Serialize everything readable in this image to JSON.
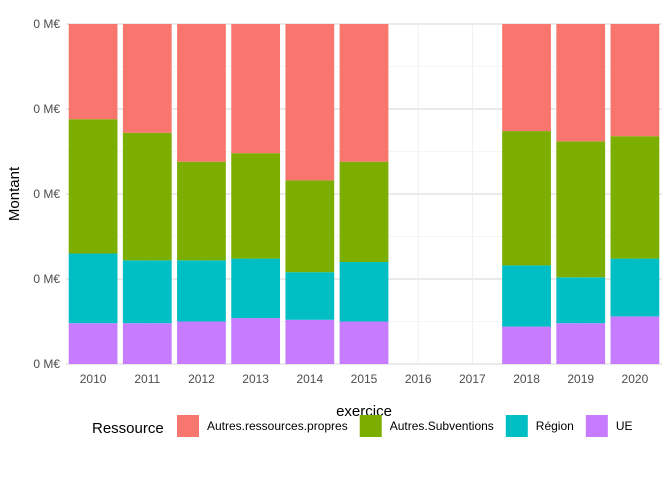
{
  "chart_data": {
    "type": "bar",
    "stacked": true,
    "normalized": true,
    "grid": true,
    "xlabel": "exercice",
    "ylabel": "Montant",
    "ylim": [
      0,
      1
    ],
    "y_tick_labels": [
      "0 M€",
      "0 M€",
      "0 M€",
      "0 M€",
      "0 M€"
    ],
    "categories": [
      "2010",
      "2011",
      "2012",
      "2013",
      "2014",
      "2015",
      "2016",
      "2017",
      "2018",
      "2019",
      "2020"
    ],
    "legend_title": "Ressource",
    "legend_position": "bottom",
    "series": [
      {
        "name": "UE",
        "color": "#C77CFF",
        "values": [
          0.12,
          0.12,
          0.125,
          0.135,
          0.13,
          0.125,
          0,
          0,
          0.11,
          0.12,
          0.14
        ]
      },
      {
        "name": "Région",
        "color": "#00BFC4",
        "values": [
          0.205,
          0.185,
          0.18,
          0.175,
          0.14,
          0.175,
          0,
          0,
          0.18,
          0.135,
          0.17
        ]
      },
      {
        "name": "Autres.Subventions",
        "color": "#7CAE00",
        "values": [
          0.395,
          0.375,
          0.29,
          0.31,
          0.27,
          0.295,
          0,
          0,
          0.395,
          0.4,
          0.36
        ]
      },
      {
        "name": "Autres.ressources.propres",
        "color": "#F8766D",
        "values": [
          0.28,
          0.32,
          0.405,
          0.38,
          0.46,
          0.405,
          0,
          0,
          0.315,
          0.345,
          0.33
        ]
      }
    ],
    "legend_order": [
      "Autres.ressources.propres",
      "Autres.Subventions",
      "Région",
      "UE"
    ]
  }
}
